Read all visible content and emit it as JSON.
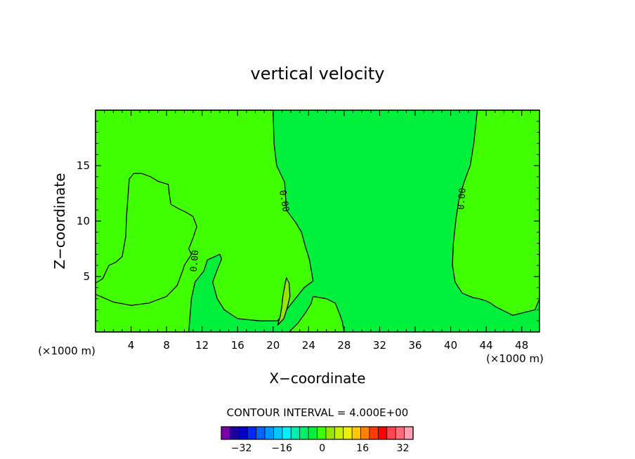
{
  "chart_data": {
    "type": "contour",
    "title": "vertical velocity",
    "xlabel": "X−coordinate",
    "ylabel": "Z−coordinate",
    "x_unit": "(×1000 m)",
    "y_unit": "(×1000 m)",
    "xlim": [
      0,
      50
    ],
    "ylim": [
      0,
      20
    ],
    "x_ticks": [
      4,
      8,
      12,
      16,
      20,
      24,
      28,
      32,
      36,
      40,
      44,
      48
    ],
    "x_tick_labels": [
      "4",
      "8",
      "12",
      "16",
      "20",
      "24",
      "28",
      "32",
      "36",
      "40",
      "44",
      "48"
    ],
    "y_ticks": [
      5,
      10,
      15
    ],
    "y_tick_labels": [
      "5",
      "10",
      "15"
    ],
    "contour_interval_text": "CONTOUR INTERVAL = 4.000E+00",
    "contour_labels": [
      {
        "text": "0.00",
        "x": 21.2,
        "y": 11.8,
        "angle": 80
      },
      {
        "text": "0.00",
        "x": 41.3,
        "y": 12.0,
        "angle": -85
      },
      {
        "text": "0.00",
        "x": 11.2,
        "y": 6.4,
        "angle": -85
      }
    ],
    "regions": [
      {
        "name": "positive-left",
        "color": "#3fff00",
        "range": "0 to 4",
        "points": [
          [
            0,
            20
          ],
          [
            20,
            20
          ],
          [
            20.1,
            17
          ],
          [
            20.4,
            15
          ],
          [
            21.3,
            13.5
          ],
          [
            21.5,
            11
          ],
          [
            22.6,
            9.8
          ],
          [
            23.2,
            9
          ],
          [
            23.6,
            7.8
          ],
          [
            24.1,
            6.5
          ],
          [
            24.5,
            4.6
          ],
          [
            23.5,
            4
          ],
          [
            22.5,
            3
          ],
          [
            21.5,
            2
          ],
          [
            20.5,
            1
          ],
          [
            18.5,
            1
          ],
          [
            16,
            1.2
          ],
          [
            14.5,
            2
          ],
          [
            13.7,
            3
          ],
          [
            13.2,
            4.5
          ],
          [
            13.8,
            5.8
          ],
          [
            14.2,
            6.6
          ],
          [
            14,
            7
          ],
          [
            12.6,
            6.5
          ],
          [
            12.2,
            5.5
          ],
          [
            11.2,
            4.5
          ],
          [
            10.8,
            3
          ],
          [
            10.5,
            0
          ],
          [
            0,
            0
          ],
          [
            0,
            4.4
          ],
          [
            0.8,
            4.8
          ],
          [
            1.5,
            6
          ],
          [
            2.3,
            6.3
          ],
          [
            3,
            6.8
          ],
          [
            3.4,
            8.6
          ],
          [
            3.5,
            10.5
          ],
          [
            3.8,
            13.8
          ],
          [
            4.3,
            14.3
          ],
          [
            5.2,
            14.3
          ],
          [
            6.2,
            14
          ],
          [
            7,
            13.6
          ],
          [
            8.2,
            13.3
          ],
          [
            8.3,
            12.5
          ],
          [
            8.5,
            11.5
          ],
          [
            9.4,
            11.1
          ],
          [
            10.2,
            10.8
          ],
          [
            11,
            10.4
          ],
          [
            11.4,
            9.5
          ],
          [
            11,
            8.5
          ],
          [
            10.5,
            7.5
          ],
          [
            10.8,
            7
          ],
          [
            10,
            6
          ],
          [
            9.8,
            5.5
          ],
          [
            9.2,
            4.2
          ],
          [
            8,
            3.2
          ],
          [
            6,
            2.6
          ],
          [
            4,
            2.4
          ],
          [
            2,
            2.7
          ],
          [
            0,
            3.4
          ],
          [
            0,
            20
          ]
        ]
      },
      {
        "name": "positive-right",
        "color": "#3fff00",
        "range": "0 to 4",
        "points": [
          [
            43,
            20
          ],
          [
            50,
            20
          ],
          [
            50,
            3
          ],
          [
            49.5,
            2
          ],
          [
            47,
            1.5
          ],
          [
            45,
            2.3
          ],
          [
            44.5,
            2.6
          ],
          [
            44,
            2.8
          ],
          [
            43.2,
            3
          ],
          [
            42.5,
            3.1
          ],
          [
            41.3,
            3.5
          ],
          [
            40.5,
            4.5
          ],
          [
            40.2,
            6
          ],
          [
            40.3,
            8
          ],
          [
            40.6,
            10.2
          ],
          [
            40.9,
            11.8
          ],
          [
            41.5,
            13.5
          ],
          [
            42.2,
            15
          ],
          [
            42.6,
            17
          ],
          [
            43,
            20
          ]
        ]
      },
      {
        "name": "positive-gap",
        "color": "#3fff00",
        "range": "0 to 4",
        "points": [
          [
            24.5,
            3.2
          ],
          [
            26,
            3
          ],
          [
            27,
            2.6
          ],
          [
            27.5,
            1.6
          ],
          [
            27.8,
            0.9
          ],
          [
            28,
            0
          ],
          [
            21.8,
            0
          ],
          [
            22.8,
            0.8
          ],
          [
            23.7,
            1.8
          ],
          [
            24.3,
            2.6
          ]
        ]
      },
      {
        "name": "positive-core",
        "color": "#96e600",
        "range": "4 to 8",
        "points": [
          [
            20.5,
            0.6
          ],
          [
            20.8,
            1.4
          ],
          [
            21,
            2.4
          ],
          [
            21.1,
            3.2
          ],
          [
            21.3,
            4.1
          ],
          [
            21.5,
            4.9
          ],
          [
            21.8,
            4.4
          ],
          [
            21.9,
            3.2
          ],
          [
            21.6,
            2.2
          ],
          [
            21.2,
            1.2
          ]
        ]
      }
    ],
    "background_color": "#00f03c",
    "colorbar": {
      "colors": [
        "#7a00a8",
        "#1e00a0",
        "#0000c8",
        "#0028ff",
        "#0064ff",
        "#0096ff",
        "#00c8ff",
        "#00f0ff",
        "#00f0b4",
        "#00f06e",
        "#00f03c",
        "#3fff00",
        "#96e600",
        "#c8f000",
        "#f0f000",
        "#ffc800",
        "#ff8200",
        "#ff3c00",
        "#ff0000",
        "#ff4650",
        "#ff6e78",
        "#ffa0b4"
      ],
      "tick_values": [
        -32,
        -16,
        0,
        16,
        32
      ],
      "tick_labels": [
        "−32",
        "−16",
        "0",
        "16",
        "32"
      ],
      "vmin": -40,
      "vmax": 36
    }
  }
}
